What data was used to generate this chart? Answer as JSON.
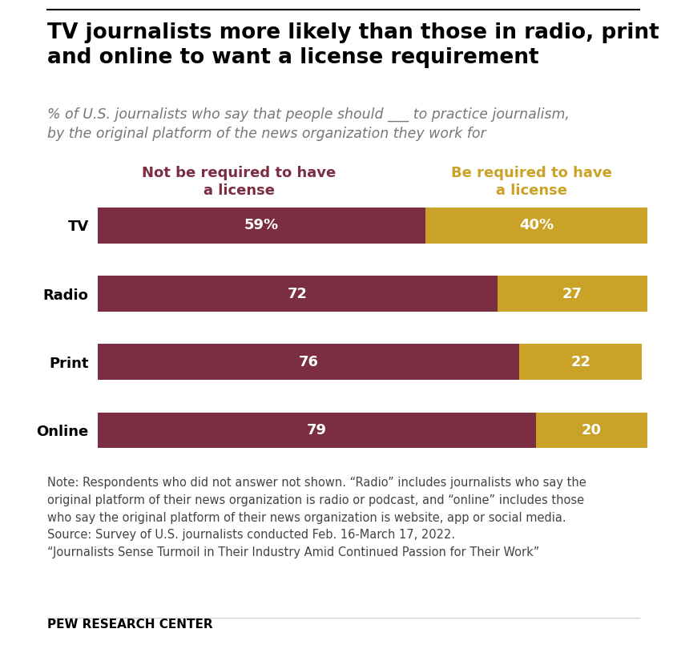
{
  "title": "TV journalists more likely than those in radio, print\nand online to want a license requirement",
  "subtitle": "% of U.S. journalists who say that people should ___ to practice journalism,\nby the original platform of the news organization they work for",
  "categories": [
    "TV",
    "Radio",
    "Print",
    "Online"
  ],
  "not_required": [
    59,
    72,
    76,
    79
  ],
  "be_required": [
    40,
    27,
    22,
    20
  ],
  "not_required_labels": [
    "59%",
    "72",
    "76",
    "79"
  ],
  "be_required_labels": [
    "40%",
    "27",
    "22",
    "20"
  ],
  "color_not_required": "#7B2D42",
  "color_be_required": "#C9A227",
  "legend_not_required": "Not be required to have\na license",
  "legend_be_required": "Be required to have\na license",
  "note": "Note: Respondents who did not answer not shown. “Radio” includes journalists who say the\noriginal platform of their news organization is radio or podcast, and “online” includes those\nwho say the original platform of their news organization is website, app or social media.\nSource: Survey of U.S. journalists conducted Feb. 16-March 17, 2022.\n“Journalists Sense Turmoil in Their Industry Amid Continued Passion for Their Work”",
  "footer": "PEW RESEARCH CENTER",
  "background_color": "#FFFFFF",
  "title_fontsize": 19,
  "subtitle_fontsize": 12.5,
  "label_fontsize": 13,
  "note_fontsize": 10.5,
  "footer_fontsize": 11,
  "category_fontsize": 13,
  "legend_fontsize": 13
}
